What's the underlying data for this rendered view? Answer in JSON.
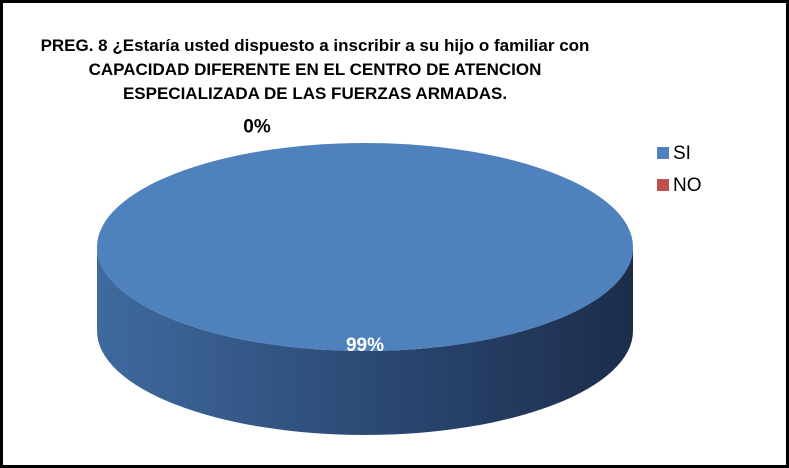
{
  "chart_data": {
    "type": "pie",
    "title": "PREG. 8  ¿Estaría usted dispuesto a inscribir a su hijo o familiar con CAPACIDAD DIFERENTE EN EL CENTRO DE ATENCION ESPECIALIZADA DE LAS FUERZAS ARMADAS.",
    "categories": [
      "SI",
      "NO"
    ],
    "values": [
      99,
      0
    ],
    "value_labels": [
      "99%",
      "0%"
    ],
    "colors": [
      "#4f81bd",
      "#c0504d"
    ],
    "legend": "right"
  }
}
